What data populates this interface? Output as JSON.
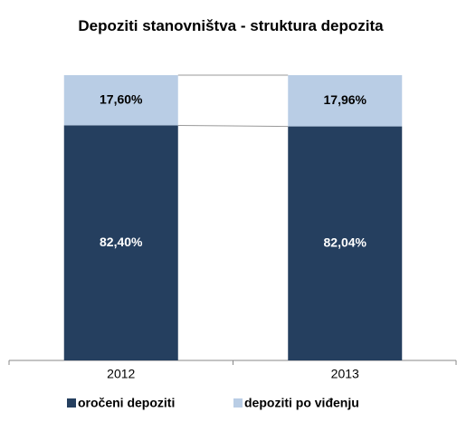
{
  "chart_data": {
    "type": "stacked_bar",
    "title": "Depoziti stanovništva - struktura depozita",
    "categories": [
      "2012",
      "2013"
    ],
    "ylim": [
      0,
      100
    ],
    "series": [
      {
        "name": "oročeni depoziti",
        "color": "#253f5f",
        "values": [
          82.4,
          82.04
        ],
        "value_labels": [
          "82,40%",
          "82,04%"
        ]
      },
      {
        "name": "depoziti po viđenju",
        "color": "#b9cde5",
        "values": [
          17.6,
          17.96
        ],
        "value_labels": [
          "17,60%",
          "17,96%"
        ]
      }
    ]
  }
}
